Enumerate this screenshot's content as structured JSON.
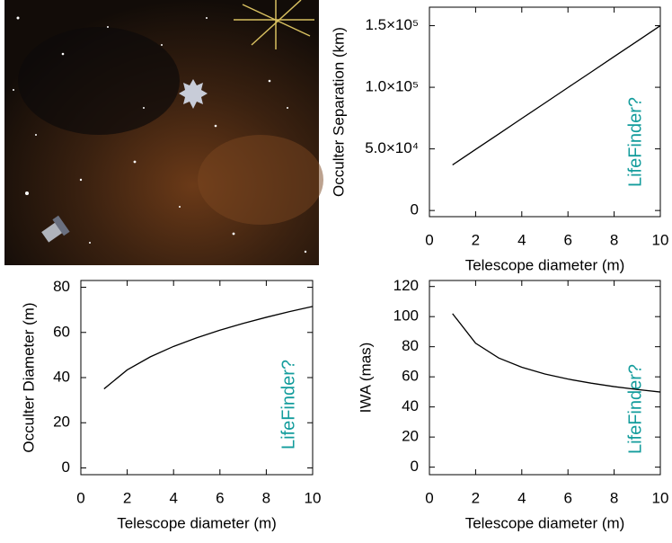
{
  "chart_data": [
    {
      "type": "line",
      "ylabel": "Occulter Separation (km)",
      "xlabel": "Telescope diameter (m)",
      "x": [
        1,
        2,
        3,
        4,
        5,
        6,
        7,
        8,
        9,
        10
      ],
      "values": [
        37000,
        49600,
        62100,
        74700,
        87200,
        99800,
        112300,
        124900,
        137400,
        150000
      ],
      "color": "#000000",
      "xlim": [
        0,
        10
      ],
      "xticks": [
        0,
        2,
        4,
        6,
        8,
        10
      ],
      "ylim": [
        -5000,
        165000
      ],
      "yticks": [
        0,
        {
          "value": 50000,
          "label": "5.0×10⁴"
        },
        {
          "value": 100000,
          "label": "1.0×10⁵"
        },
        {
          "value": 150000,
          "label": "1.5×10⁵"
        }
      ],
      "annotation": "LifeFinder?",
      "annotation_color": "#139c9c"
    },
    {
      "type": "line",
      "ylabel": "Occulter Diameter (m)",
      "xlabel": "Telescope diameter (m)",
      "x": [
        1,
        2,
        3,
        4,
        5,
        6,
        7,
        8,
        9,
        10
      ],
      "values": [
        35,
        43.4,
        49.2,
        53.8,
        57.6,
        61.0,
        64.0,
        66.7,
        69.2,
        71.5
      ],
      "color": "#000000",
      "xlim": [
        0,
        10
      ],
      "xticks": [
        0,
        2,
        4,
        6,
        8,
        10
      ],
      "ylim": [
        -3,
        83
      ],
      "yticks": [
        0,
        20,
        40,
        60,
        80
      ],
      "annotation": "LifeFinder?",
      "annotation_color": "#139c9c"
    },
    {
      "type": "line",
      "ylabel": "IWA (mas)",
      "xlabel": "Telescope diameter (m)",
      "x": [
        1,
        2,
        3,
        4,
        5,
        6,
        7,
        8,
        9,
        10
      ],
      "values": [
        102,
        82.3,
        72.5,
        66.4,
        61.9,
        58.5,
        55.8,
        53.5,
        51.6,
        49.9
      ],
      "color": "#000000",
      "xlim": [
        0,
        10
      ],
      "xticks": [
        0,
        2,
        4,
        6,
        8,
        10
      ],
      "ylim": [
        -5,
        124
      ],
      "yticks": [
        0,
        20,
        40,
        60,
        80,
        100,
        120
      ],
      "annotation": "LifeFinder?",
      "annotation_color": "#139c9c"
    }
  ]
}
